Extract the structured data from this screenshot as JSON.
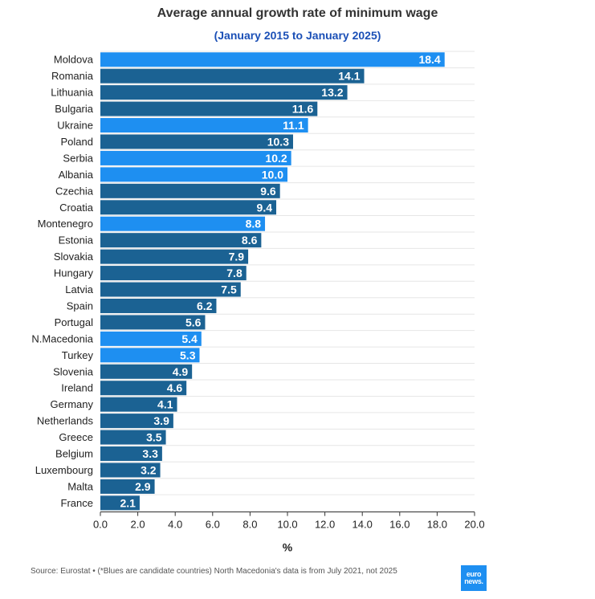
{
  "title": "Average annual growth rate of minimum wage",
  "subtitle": "(January 2015 to January 2025)",
  "source": "Source: Eurostat • (*Blues are candidate countries) North Macedonia's data is from July 2021, not 2025",
  "logo": {
    "line1": "euro",
    "line2": "news."
  },
  "colors": {
    "member": "#1b6293",
    "candidate": "#1e8ff1",
    "grid": "#e6e6e6",
    "axis": "#333333"
  },
  "chart_data": {
    "type": "bar",
    "orientation": "horizontal",
    "categories": [
      "Moldova",
      "Romania",
      "Lithuania",
      "Bulgaria",
      "Ukraine",
      "Poland",
      "Serbia",
      "Albania",
      "Czechia",
      "Croatia",
      "Montenegro",
      "Estonia",
      "Slovakia",
      "Hungary",
      "Latvia",
      "Spain",
      "Portugal",
      "N.Macedonia",
      "Turkey",
      "Slovenia",
      "Ireland",
      "Germany",
      "Netherlands",
      "Greece",
      "Belgium",
      "Luxembourg",
      "Malta",
      "France"
    ],
    "values": [
      18.4,
      14.1,
      13.2,
      11.6,
      11.1,
      10.3,
      10.2,
      10.0,
      9.6,
      9.4,
      8.8,
      8.6,
      7.9,
      7.8,
      7.5,
      6.2,
      5.6,
      5.4,
      5.3,
      4.9,
      4.6,
      4.1,
      3.9,
      3.5,
      3.3,
      3.2,
      2.9,
      2.1
    ],
    "value_labels": [
      "18.4",
      "14.1",
      "13.2",
      "11.6",
      "11.1",
      "10.3",
      "10.2",
      "10.0",
      "9.6",
      "9.4",
      "8.8",
      "8.6",
      "7.9",
      "7.8",
      "7.5",
      "6.2",
      "5.6",
      "5.4",
      "5.3",
      "4.9",
      "4.6",
      "4.1",
      "3.9",
      "3.5",
      "3.3",
      "3.2",
      "2.9",
      "2.1"
    ],
    "candidate": [
      true,
      false,
      false,
      false,
      true,
      false,
      true,
      true,
      false,
      false,
      true,
      false,
      false,
      false,
      false,
      false,
      false,
      true,
      true,
      false,
      false,
      false,
      false,
      false,
      false,
      false,
      false,
      false
    ],
    "xlabel": "%",
    "xlim": [
      0,
      20
    ],
    "xticks": [
      "0.0",
      "2.0",
      "4.0",
      "6.0",
      "8.0",
      "10.0",
      "12.0",
      "14.0",
      "16.0",
      "18.0",
      "20.0"
    ],
    "grid": true
  }
}
